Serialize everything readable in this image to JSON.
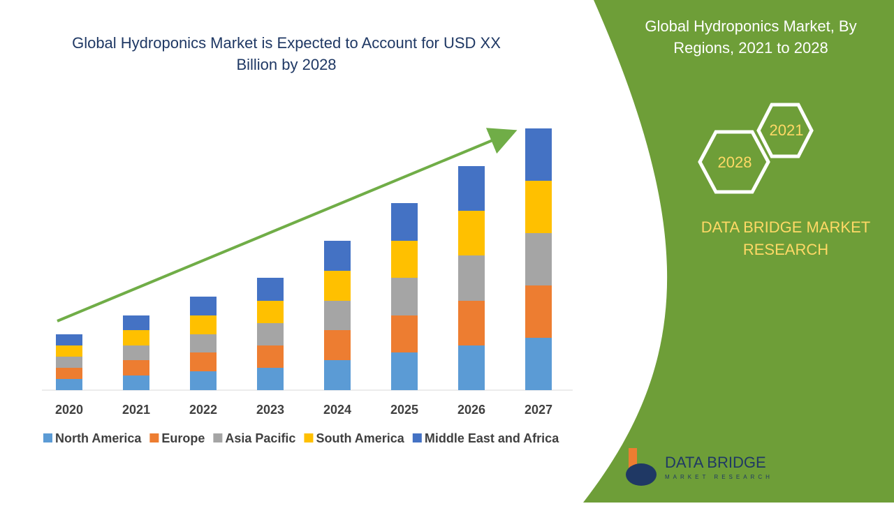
{
  "chart_data": {
    "type": "bar",
    "stacked": true,
    "title": "Global Hydroponics Market is Expected to Account for USD XX Billion by 2028",
    "categories": [
      "2020",
      "2021",
      "2022",
      "2023",
      "2024",
      "2025",
      "2026",
      "2027"
    ],
    "series": [
      {
        "name": "North America",
        "color": "#5b9bd5",
        "values": [
          16,
          21,
          27,
          32,
          43,
          54,
          64,
          75
        ]
      },
      {
        "name": "Europe",
        "color": "#ed7d31",
        "values": [
          16,
          22,
          27,
          32,
          43,
          53,
          64,
          75
        ]
      },
      {
        "name": "Asia Pacific",
        "color": "#a5a5a5",
        "values": [
          16,
          21,
          26,
          32,
          42,
          54,
          65,
          75
        ]
      },
      {
        "name": "South America",
        "color": "#ffc000",
        "values": [
          16,
          22,
          27,
          32,
          43,
          53,
          64,
          75
        ]
      },
      {
        "name": "Middle East and Africa",
        "color": "#4472c4",
        "values": [
          16,
          21,
          27,
          33,
          43,
          54,
          64,
          75
        ]
      }
    ]
  },
  "side_panel": {
    "title": "Global Hydroponics Market, By Regions, 2021 to 2028",
    "hex_years": [
      "2021",
      "2028"
    ],
    "brand": "DATA BRIDGE MARKET RESEARCH",
    "logo_text": "DATA BRIDGE",
    "logo_sub": "MARKET RESEARCH"
  }
}
